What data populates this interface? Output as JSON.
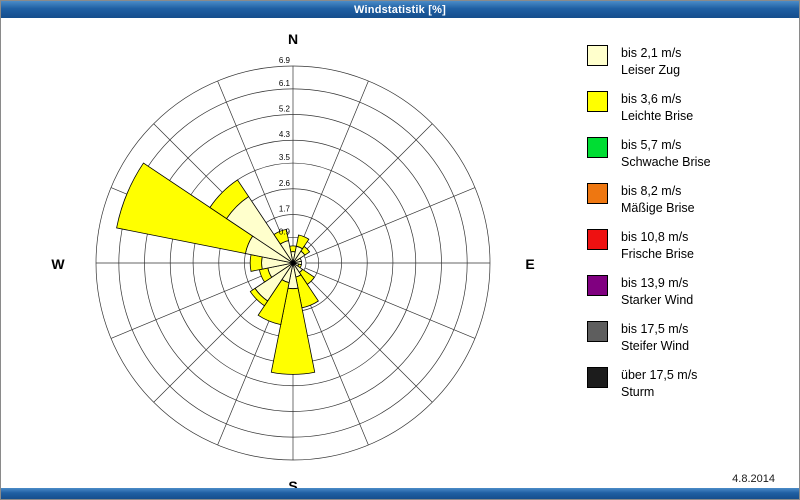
{
  "window": {
    "title": "Windstatistik [%]",
    "date": "4.8.2014"
  },
  "compass": {
    "north": "N",
    "east": "E",
    "south": "S",
    "west": "W"
  },
  "legend": {
    "items": [
      {
        "color": "#FFFFCC",
        "speed": "bis 2,1 m/s",
        "name": "Leiser Zug"
      },
      {
        "color": "#FFFF00",
        "speed": "bis 3,6 m/s",
        "name": "Leichte Brise"
      },
      {
        "color": "#00DD33",
        "speed": "bis 5,7 m/s",
        "name": "Schwache Brise"
      },
      {
        "color": "#EE7711",
        "speed": "bis 8,2 m/s",
        "name": "Mäßige Brise"
      },
      {
        "color": "#EE1111",
        "speed": "bis 10,8 m/s",
        "name": "Frische Brise"
      },
      {
        "color": "#800080",
        "speed": "bis 13,9 m/s",
        "name": "Starker Wind"
      },
      {
        "color": "#5E5E5E",
        "speed": "bis 17,5 m/s",
        "name": "Steifer Wind"
      },
      {
        "color": "#1C1C1C",
        "speed": "über 17,5 m/s",
        "name": "Sturm"
      }
    ]
  },
  "chart_data": {
    "type": "wind-rose",
    "title": "Windstatistik [%]",
    "units": "%",
    "sectors": 16,
    "max_value": 6.9,
    "ring_values": [
      0.9,
      1.7,
      2.6,
      3.5,
      4.3,
      5.2,
      6.1,
      6.9
    ],
    "ring_labels": [
      "0.9",
      "1.7",
      "2.6",
      "3.5",
      "4.3",
      "5.2",
      "6.1",
      "6.9"
    ],
    "directions": [
      "N",
      "NNE",
      "NE",
      "ENE",
      "E",
      "ESE",
      "SE",
      "SSE",
      "S",
      "SSW",
      "SW",
      "WSW",
      "W",
      "WNW",
      "NW",
      "NNW"
    ],
    "series": [
      {
        "name": "bis 2,1 m/s",
        "color": "#FFFFCC",
        "values": [
          0.4,
          0.6,
          0.5,
          0.3,
          0.3,
          0.2,
          0.4,
          0.5,
          0.9,
          0.7,
          1.6,
          0.9,
          1.1,
          1.7,
          2.8,
          0.8
        ]
      },
      {
        "name": "bis 3,6 m/s",
        "color": "#FFFF00",
        "values": [
          0.2,
          0.4,
          0.2,
          0.0,
          0.0,
          0.1,
          0.5,
          1.1,
          3.0,
          1.5,
          0.2,
          0.3,
          0.4,
          4.6,
          0.7,
          0.4
        ]
      },
      {
        "name": "bis 5,7 m/s",
        "color": "#00DD33",
        "values": [
          0,
          0,
          0,
          0,
          0,
          0,
          0,
          0,
          0,
          0,
          0,
          0,
          0,
          0,
          0,
          0
        ]
      },
      {
        "name": "bis 8,2 m/s",
        "color": "#EE7711",
        "values": [
          0,
          0,
          0,
          0,
          0,
          0,
          0,
          0,
          0,
          0,
          0,
          0,
          0,
          0,
          0,
          0
        ]
      },
      {
        "name": "bis 10,8 m/s",
        "color": "#EE1111",
        "values": [
          0,
          0,
          0,
          0,
          0,
          0,
          0,
          0,
          0,
          0,
          0,
          0,
          0,
          0,
          0,
          0
        ]
      },
      {
        "name": "bis 13,9 m/s",
        "color": "#800080",
        "values": [
          0,
          0,
          0,
          0,
          0,
          0,
          0,
          0,
          0,
          0,
          0,
          0,
          0,
          0,
          0,
          0
        ]
      },
      {
        "name": "bis 17,5 m/s",
        "color": "#5E5E5E",
        "values": [
          0,
          0,
          0,
          0,
          0,
          0,
          0,
          0,
          0,
          0,
          0,
          0,
          0,
          0,
          0,
          0
        ]
      },
      {
        "name": "über 17,5 m/s",
        "color": "#1C1C1C",
        "values": [
          0,
          0,
          0,
          0,
          0,
          0,
          0,
          0,
          0,
          0,
          0,
          0,
          0,
          0,
          0,
          0
        ]
      }
    ],
    "layout": {
      "grid": true,
      "legend_position": "right"
    }
  }
}
